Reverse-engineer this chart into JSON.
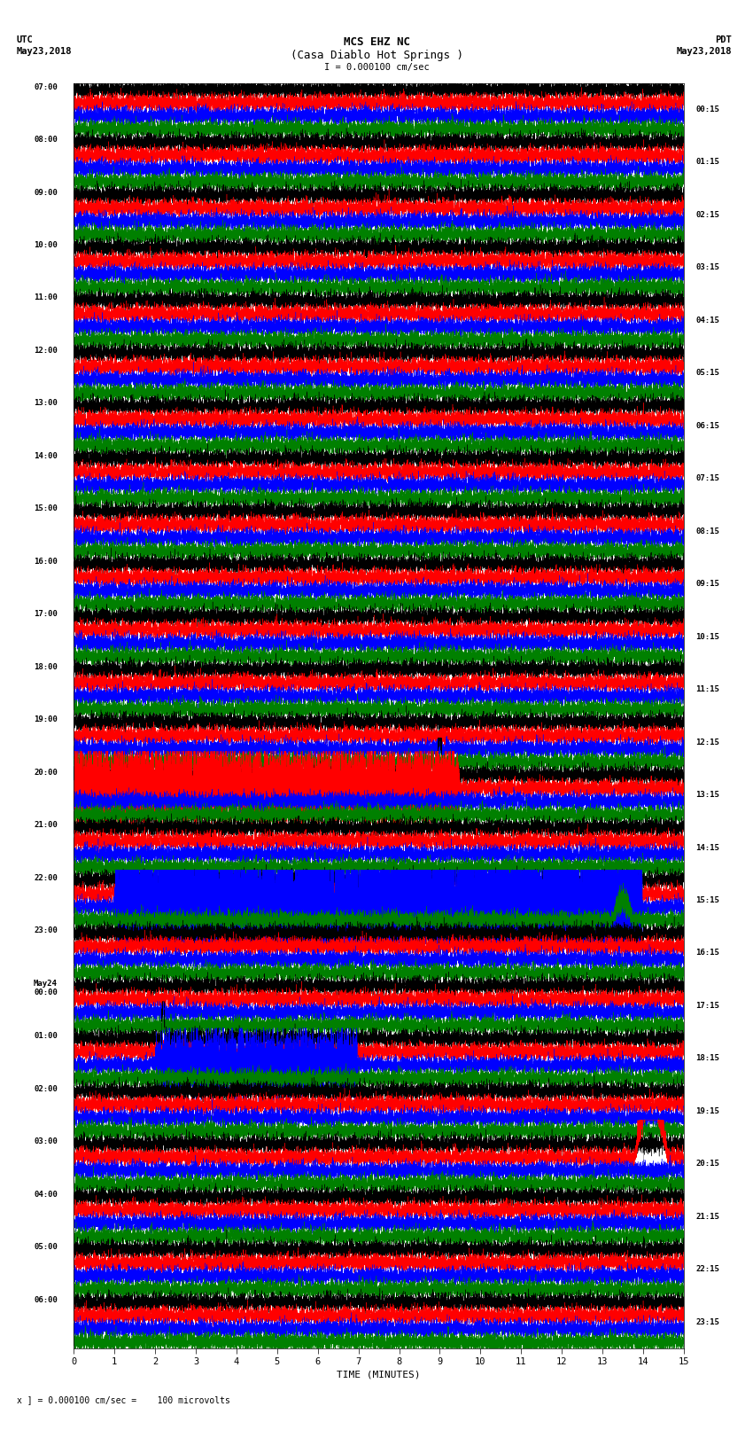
{
  "title_line1": "MCS EHZ NC",
  "title_line2": "(Casa Diablo Hot Springs )",
  "scale_label": "I = 0.000100 cm/sec",
  "footer_label": "= 0.000100 cm/sec =    100 microvolts",
  "utc_label1": "UTC",
  "utc_label2": "May23,2018",
  "pdt_label1": "PDT",
  "pdt_label2": "May23,2018",
  "xlabel": "TIME (MINUTES)",
  "left_times": [
    "07:00",
    "08:00",
    "09:00",
    "10:00",
    "11:00",
    "12:00",
    "13:00",
    "14:00",
    "15:00",
    "16:00",
    "17:00",
    "18:00",
    "19:00",
    "20:00",
    "21:00",
    "22:00",
    "23:00",
    "May24\n00:00",
    "01:00",
    "02:00",
    "03:00",
    "04:00",
    "05:00",
    "06:00"
  ],
  "right_times": [
    "00:15",
    "01:15",
    "02:15",
    "03:15",
    "04:15",
    "05:15",
    "06:15",
    "07:15",
    "08:15",
    "09:15",
    "10:15",
    "11:15",
    "12:15",
    "13:15",
    "14:15",
    "15:15",
    "16:15",
    "17:15",
    "18:15",
    "19:15",
    "20:15",
    "21:15",
    "22:15",
    "23:15"
  ],
  "colors": [
    "black",
    "red",
    "blue",
    "green"
  ],
  "bg_color": "white",
  "n_rows": 96,
  "n_minutes": 15,
  "figsize": [
    8.5,
    16.13
  ],
  "dpi": 100,
  "noise_amp": 0.08,
  "trace_scale": 0.3,
  "lw": 0.28
}
